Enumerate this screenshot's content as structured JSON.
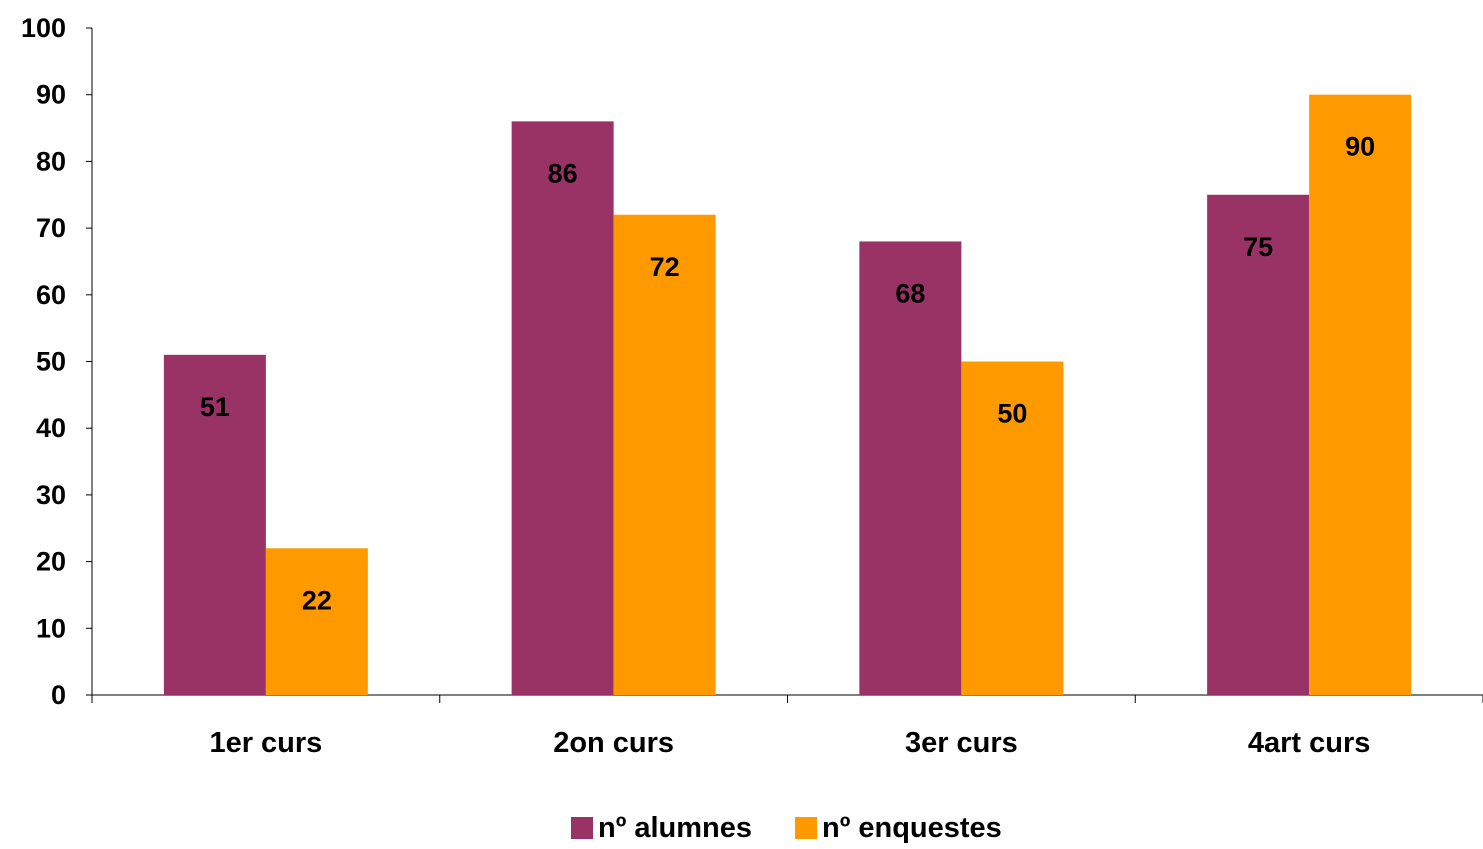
{
  "chart_data": {
    "type": "bar",
    "title": "",
    "xlabel": "",
    "ylabel": "",
    "categories": [
      "1er curs",
      "2on curs",
      "3er curs",
      "4art curs"
    ],
    "series": [
      {
        "name": "nº alumnes",
        "values": [
          51,
          86,
          68,
          75
        ],
        "color": "#993366"
      },
      {
        "name": "nº enquestes",
        "values": [
          22,
          72,
          50,
          90
        ],
        "color": "#FF9900"
      }
    ],
    "ylim": [
      0,
      100
    ],
    "yticks": [
      0,
      10,
      20,
      30,
      40,
      50,
      60,
      70,
      80,
      90,
      100
    ],
    "grid": false,
    "data_labels": true,
    "legend_position": "bottom"
  }
}
